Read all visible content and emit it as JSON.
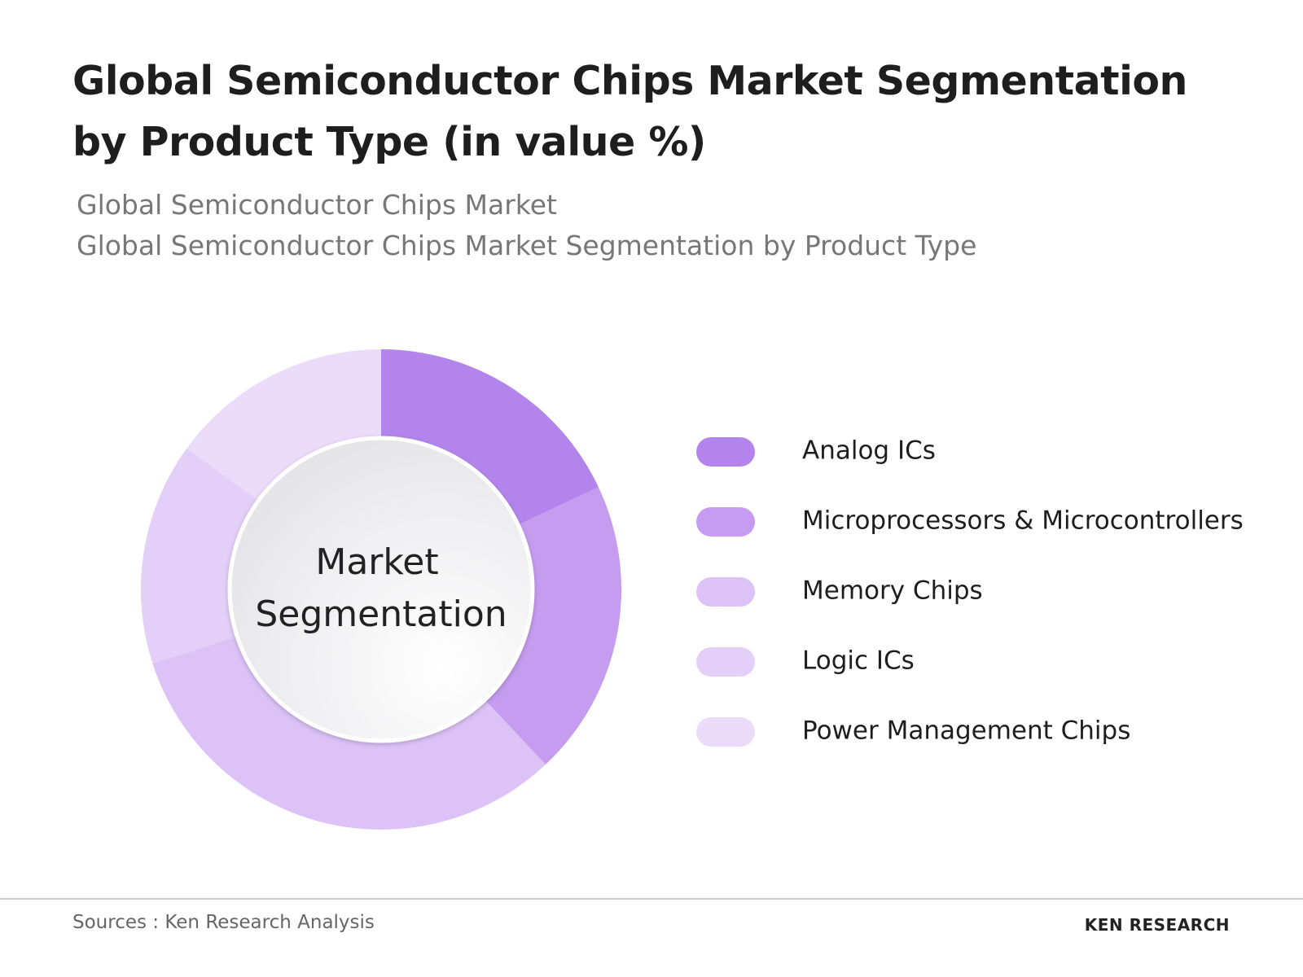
{
  "chart_data": {
    "type": "donut",
    "title": "Global Semiconductor Chips Market Segmentation by Product Type (in value %)",
    "subtitles": [
      "Global Semiconductor Chips Market",
      "Global Semiconductor Chips Market Segmentation by Product Type"
    ],
    "center_label": [
      "Market",
      "Segmentation"
    ],
    "categories": [
      "Analog ICs",
      "Microprocessors & Microcontrollers",
      "Memory Chips",
      "Logic ICs",
      "Power Management Chips"
    ],
    "values": [
      18,
      20,
      32,
      15,
      15
    ],
    "colors": [
      "#b385ec",
      "#c59cef",
      "#dcc2f7",
      "#e3cff8",
      "#ebdcfa"
    ]
  },
  "footer": {
    "source": "Sources : Ken Research Analysis",
    "logo": "KEN RESEARCH"
  }
}
